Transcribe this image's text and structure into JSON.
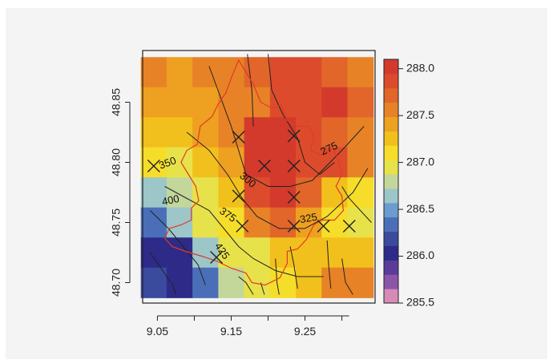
{
  "chart_data": {
    "type": "heatmap",
    "title": "",
    "xlabel": "",
    "ylabel": "",
    "xlim": [
      9.03,
      9.345
    ],
    "ylim": [
      48.683,
      48.893
    ],
    "x_ticks": [
      "9.05",
      "9.15",
      "9.25"
    ],
    "x_tick_values": [
      9.05,
      9.15,
      9.25
    ],
    "y_ticks": [
      "48.70",
      "48.75",
      "48.80",
      "48.85"
    ],
    "y_tick_values": [
      48.7,
      48.75,
      48.8,
      48.85
    ],
    "grid": false,
    "colorbar": {
      "ticks": [
        "288.0",
        "287.5",
        "287.0",
        "286.5",
        "286.0",
        "285.5"
      ],
      "tick_values": [
        288.0,
        287.5,
        287.0,
        286.5,
        286.0,
        285.5
      ],
      "range": [
        285.5,
        288.1
      ],
      "colors": [
        "#d68ab8",
        "#8c55a8",
        "#5a3b9a",
        "#2e2a88",
        "#3a4a9c",
        "#4a6fb8",
        "#6b9bd0",
        "#9cc6c8",
        "#c4d79a",
        "#e8e24a",
        "#f6dd2a",
        "#f2c01c",
        "#eea020",
        "#e78326",
        "#e2652a",
        "#dc4c2c",
        "#d33a2c"
      ]
    },
    "grid_x": [
      9.045,
      9.08,
      9.115,
      9.15,
      9.185,
      9.22,
      9.255,
      9.29,
      9.325
    ],
    "grid_y": [
      48.875,
      48.85,
      48.825,
      48.8,
      48.775,
      48.75,
      48.725,
      48.7
    ],
    "values": [
      [
        287.5,
        287.45,
        287.5,
        287.55,
        287.7,
        287.9,
        287.9,
        287.75,
        287.6
      ],
      [
        287.35,
        287.4,
        287.4,
        287.5,
        287.6,
        287.8,
        287.85,
        288.0,
        287.7
      ],
      [
        287.2,
        287.3,
        287.4,
        287.5,
        288.0,
        288.0,
        287.9,
        287.75,
        287.6
      ],
      [
        287.1,
        287.0,
        287.2,
        287.4,
        288.0,
        288.0,
        287.9,
        287.8,
        287.5
      ],
      [
        286.7,
        286.8,
        287.0,
        287.2,
        287.9,
        287.95,
        287.7,
        287.3,
        287.1
      ],
      [
        286.4,
        286.6,
        286.9,
        287.1,
        287.6,
        287.75,
        287.4,
        287.1,
        287.0
      ],
      [
        286.1,
        286.1,
        286.6,
        286.9,
        287.0,
        287.3,
        287.2,
        287.2,
        287.3
      ],
      [
        286.2,
        286.1,
        286.4,
        286.8,
        286.9,
        287.1,
        287.3,
        287.5,
        287.6
      ]
    ],
    "stations": [
      {
        "x": 9.045,
        "y": 48.797
      },
      {
        "x": 9.16,
        "y": 48.821
      },
      {
        "x": 9.195,
        "y": 48.797
      },
      {
        "x": 9.235,
        "y": 48.822
      },
      {
        "x": 9.235,
        "y": 48.797
      },
      {
        "x": 9.235,
        "y": 48.771
      },
      {
        "x": 9.16,
        "y": 48.772
      },
      {
        "x": 9.165,
        "y": 48.747
      },
      {
        "x": 9.235,
        "y": 48.747
      },
      {
        "x": 9.275,
        "y": 48.747
      },
      {
        "x": 9.31,
        "y": 48.747
      },
      {
        "x": 9.13,
        "y": 48.721
      }
    ],
    "contour_labels": [
      {
        "text": "350",
        "x": 9.064,
        "y": 48.799,
        "rotate": -20
      },
      {
        "text": "400",
        "x": 9.068,
        "y": 48.768,
        "rotate": -12
      },
      {
        "text": "300",
        "x": 9.172,
        "y": 48.785,
        "rotate": 40
      },
      {
        "text": "275",
        "x": 9.283,
        "y": 48.811,
        "rotate": -25
      },
      {
        "text": "375",
        "x": 9.145,
        "y": 48.756,
        "rotate": 35
      },
      {
        "text": "325",
        "x": 9.255,
        "y": 48.753,
        "rotate": -10
      },
      {
        "text": "425",
        "x": 9.137,
        "y": 48.726,
        "rotate": 55
      }
    ],
    "contours": [
      [
        [
          9.172,
          48.89
        ],
        [
          9.178,
          48.86
        ],
        [
          9.18,
          48.83
        ]
      ],
      [
        [
          9.12,
          48.88
        ],
        [
          9.135,
          48.855
        ],
        [
          9.15,
          48.83
        ],
        [
          9.16,
          48.81
        ],
        [
          9.17,
          48.79
        ],
        [
          9.2,
          48.78
        ],
        [
          9.23,
          48.78
        ],
        [
          9.26,
          48.785
        ],
        [
          9.3,
          48.81
        ],
        [
          9.33,
          48.83
        ]
      ],
      [
        [
          9.09,
          48.825
        ],
        [
          9.12,
          48.81
        ],
        [
          9.145,
          48.79
        ],
        [
          9.165,
          48.77
        ],
        [
          9.185,
          48.755
        ],
        [
          9.215,
          48.745
        ],
        [
          9.25,
          48.745
        ],
        [
          9.28,
          48.755
        ],
        [
          9.315,
          48.775
        ],
        [
          9.335,
          48.795
        ]
      ],
      [
        [
          9.06,
          48.78
        ],
        [
          9.09,
          48.77
        ],
        [
          9.12,
          48.76
        ],
        [
          9.14,
          48.745
        ],
        [
          9.16,
          48.73
        ],
        [
          9.18,
          48.72
        ],
        [
          9.21,
          48.71
        ],
        [
          9.24,
          48.705
        ],
        [
          9.275,
          48.705
        ]
      ],
      [
        [
          9.04,
          48.76
        ],
        [
          9.065,
          48.745
        ],
        [
          9.085,
          48.73
        ],
        [
          9.105,
          48.715
        ],
        [
          9.115,
          48.698
        ]
      ],
      [
        [
          9.07,
          48.7
        ],
        [
          9.075,
          48.69
        ]
      ],
      [
        [
          9.2,
          48.89
        ],
        [
          9.205,
          48.86
        ],
        [
          9.22,
          48.84
        ],
        [
          9.24,
          48.82
        ],
        [
          9.25,
          48.8
        ],
        [
          9.27,
          48.79
        ],
        [
          9.29,
          48.8
        ]
      ],
      [
        [
          9.3,
          48.78
        ],
        [
          9.31,
          48.77
        ],
        [
          9.325,
          48.76
        ],
        [
          9.34,
          48.75
        ]
      ],
      [
        [
          9.04,
          48.725
        ],
        [
          9.055,
          48.712
        ],
        [
          9.068,
          48.7
        ]
      ],
      [
        [
          9.16,
          48.705
        ],
        [
          9.17,
          48.7
        ],
        [
          9.18,
          48.69
        ]
      ],
      [
        [
          9.23,
          48.73
        ],
        [
          9.235,
          48.715
        ],
        [
          9.24,
          48.695
        ]
      ],
      [
        [
          9.28,
          48.735
        ],
        [
          9.282,
          48.715
        ],
        [
          9.285,
          48.695
        ]
      ],
      [
        [
          9.3,
          48.72
        ],
        [
          9.305,
          48.7
        ],
        [
          9.315,
          48.69
        ]
      ],
      [
        [
          9.19,
          48.7
        ],
        [
          9.195,
          48.69
        ]
      ],
      [
        [
          9.21,
          48.72
        ],
        [
          9.212,
          48.7
        ],
        [
          9.215,
          48.69
        ]
      ]
    ],
    "boundary": [
      [
        9.16,
        48.885
      ],
      [
        9.18,
        48.865
      ],
      [
        9.19,
        48.85
      ],
      [
        9.205,
        48.845
      ],
      [
        9.218,
        48.848
      ],
      [
        9.225,
        48.835
      ],
      [
        9.24,
        48.83
      ],
      [
        9.255,
        48.83
      ],
      [
        9.262,
        48.822
      ],
      [
        9.258,
        48.81
      ],
      [
        9.272,
        48.806
      ],
      [
        9.288,
        48.812
      ],
      [
        9.296,
        48.8
      ],
      [
        9.3,
        48.79
      ],
      [
        9.292,
        48.78
      ],
      [
        9.3,
        48.772
      ],
      [
        9.302,
        48.76
      ],
      [
        9.29,
        48.752
      ],
      [
        9.272,
        48.752
      ],
      [
        9.262,
        48.748
      ],
      [
        9.252,
        48.736
      ],
      [
        9.24,
        48.728
      ],
      [
        9.226,
        48.726
      ],
      [
        9.226,
        48.716
      ],
      [
        9.216,
        48.704
      ],
      [
        9.196,
        48.698
      ],
      [
        9.178,
        48.7
      ],
      [
        9.17,
        48.708
      ],
      [
        9.15,
        48.712
      ],
      [
        9.13,
        48.718
      ],
      [
        9.11,
        48.722
      ],
      [
        9.088,
        48.726
      ],
      [
        9.07,
        48.73
      ],
      [
        9.06,
        48.737
      ],
      [
        9.066,
        48.745
      ],
      [
        9.082,
        48.748
      ],
      [
        9.096,
        48.752
      ],
      [
        9.096,
        48.762
      ],
      [
        9.106,
        48.768
      ],
      [
        9.102,
        48.78
      ],
      [
        9.092,
        48.79
      ],
      [
        9.082,
        48.8
      ],
      [
        9.09,
        48.81
      ],
      [
        9.104,
        48.815
      ],
      [
        9.108,
        48.83
      ],
      [
        9.124,
        48.838
      ],
      [
        9.132,
        48.848
      ],
      [
        9.143,
        48.858
      ],
      [
        9.15,
        48.87
      ],
      [
        9.16,
        48.885
      ]
    ]
  }
}
